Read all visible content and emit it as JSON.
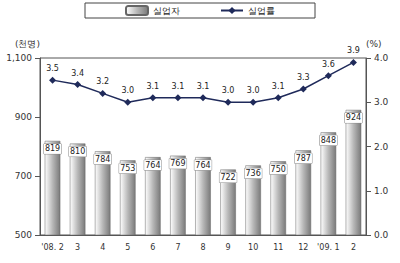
{
  "chart_data": {
    "type": "bar",
    "y_label": "(천명)",
    "y2_label": "(%)",
    "categories": [
      "'08. 2",
      "3",
      "4",
      "5",
      "6",
      "7",
      "8",
      "9",
      "10",
      "11",
      "12",
      "'09. 1",
      "2"
    ],
    "series": [
      {
        "name": "실업자",
        "type": "bar",
        "color": "#b8b8b8",
        "data_labels": true,
        "values": [
          819,
          810,
          784,
          753,
          764,
          769,
          764,
          722,
          736,
          750,
          787,
          848,
          924
        ]
      },
      {
        "name": "실업률",
        "type": "line",
        "color": "#1f2a5a",
        "marker": "diamond",
        "axis": "y2",
        "data_labels": true,
        "values": [
          3.5,
          3.4,
          3.2,
          3.0,
          3.1,
          3.1,
          3.1,
          3.0,
          3.0,
          3.1,
          3.3,
          3.6,
          3.9
        ],
        "value_labels": [
          "3.5",
          "3.4",
          "3.2",
          "3.0",
          "3.1",
          "3.1",
          "3.1",
          "3.0",
          "3.0",
          "3.1",
          "3.3",
          "3.6",
          "3.9"
        ]
      }
    ],
    "ylim": [
      500,
      1100
    ],
    "yticks": [
      500,
      700,
      900,
      {
        "value": 1100,
        "label": "1,100"
      }
    ],
    "y2lim": [
      0,
      4
    ],
    "y2ticks": [
      {
        "value": 0,
        "label": "0.0"
      },
      {
        "value": 1,
        "label": "1.0"
      },
      {
        "value": 2,
        "label": "2.0"
      },
      {
        "value": 3,
        "label": "3.0"
      },
      {
        "value": 4,
        "label": "4.0"
      }
    ],
    "legend": "top",
    "grid": false
  }
}
